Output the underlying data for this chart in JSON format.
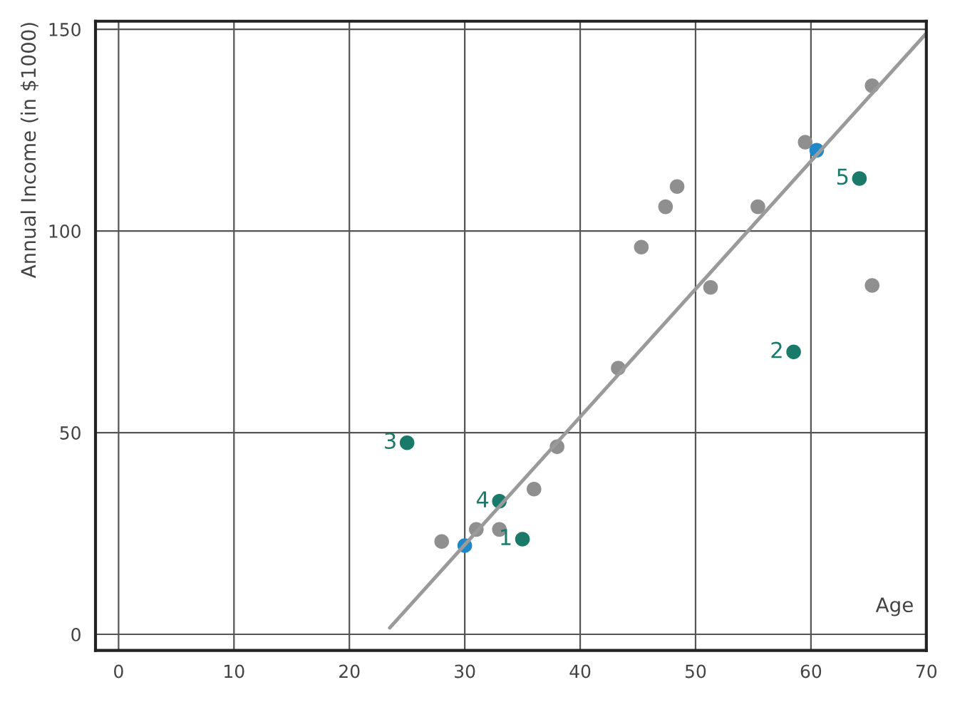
{
  "chart_data": {
    "type": "scatter",
    "xlabel": "Age",
    "ylabel": "Annual Income (in $1000)",
    "xlim": [
      -2,
      70
    ],
    "ylim": [
      -4,
      152
    ],
    "xticks": [
      0,
      10,
      20,
      30,
      40,
      50,
      60,
      70
    ],
    "yticks": [
      0,
      50,
      100,
      150
    ],
    "grid": true,
    "legend": false,
    "marker": "circle",
    "series": [
      {
        "color": "#8f8f8f",
        "x": [
          28,
          31,
          33,
          36,
          38,
          43.3,
          45.3,
          47.4,
          48.4,
          51.3,
          55.4,
          59.5,
          65.3,
          65.3
        ],
        "values": [
          23,
          26,
          26,
          36,
          46.5,
          66,
          96,
          106,
          111,
          86,
          106,
          122,
          136,
          86.5
        ]
      },
      {
        "color": "#1e88c8",
        "x": [
          30,
          60.5
        ],
        "values": [
          22,
          120
        ]
      },
      {
        "color": "#1a7a6a",
        "x": [
          35,
          58.5,
          25,
          33,
          64.2
        ],
        "values": [
          23.6,
          70,
          47.5,
          33,
          113
        ]
      },
      {
        "type": "line",
        "marker": "none",
        "color": "#9a9a9a",
        "x": [
          23.5,
          70
        ],
        "values": [
          1.6,
          149
        ]
      }
    ],
    "annotations": [
      {
        "text": "1",
        "x": 35,
        "y": 23.6
      },
      {
        "text": "2",
        "x": 58.5,
        "y": 70
      },
      {
        "text": "3",
        "x": 25,
        "y": 47.5
      },
      {
        "text": "4",
        "x": 33,
        "y": 33
      },
      {
        "text": "5",
        "x": 64.2,
        "y": 113
      }
    ]
  }
}
